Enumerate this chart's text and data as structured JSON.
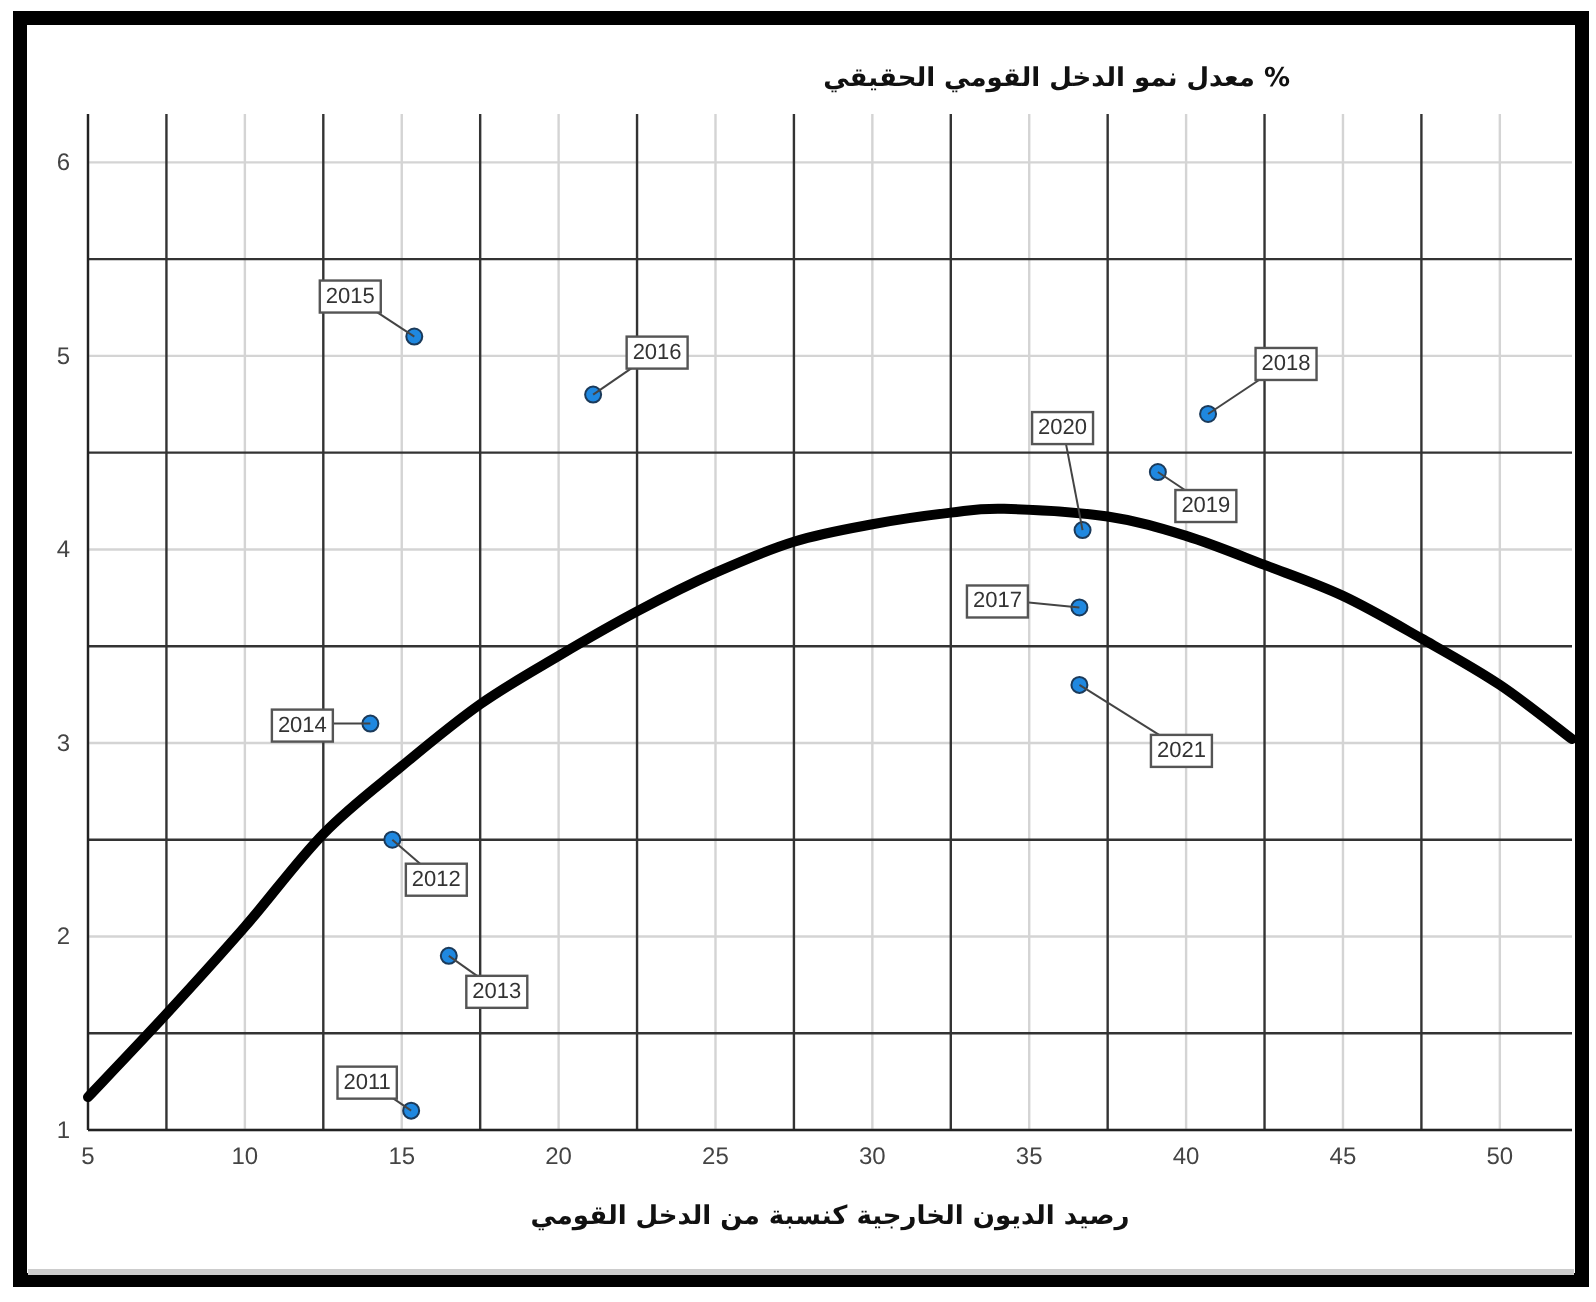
{
  "chart_data": {
    "type": "scatter",
    "ylabel": "معدل نمو الدخل القومي الحقيقي %",
    "xlabel": "رصيد الديون الخارجية كنسبة من الدخل القومي",
    "xlim": [
      5,
      52.3
    ],
    "ylim": [
      1,
      6.25
    ],
    "xticks": [
      5,
      {
        "value": 7.5,
        "label": null
      },
      10,
      {
        "value": 12.5,
        "label": null
      },
      15,
      {
        "value": 17.5,
        "label": null
      },
      20,
      {
        "value": 22.5,
        "label": null
      },
      25,
      {
        "value": 27.5,
        "label": null
      },
      30,
      {
        "value": 32.5,
        "label": null
      },
      35,
      {
        "value": 37.5,
        "label": null
      },
      40,
      {
        "value": 42.5,
        "label": null
      },
      45,
      {
        "value": 47.5,
        "label": null
      },
      50
    ],
    "yticks": [
      1,
      {
        "value": 1.5,
        "label": null
      },
      2,
      {
        "value": 2.5,
        "label": null
      },
      3,
      {
        "value": 3.5,
        "label": null
      },
      4,
      {
        "value": 4.5,
        "label": null
      },
      5,
      {
        "value": 5.5,
        "label": null
      },
      6
    ],
    "grid": true,
    "marker": "circle",
    "series": [
      {
        "color": "#1f88e0",
        "x": [
          15.3,
          14.7,
          16.5,
          14.0,
          15.4,
          21.1,
          36.6,
          40.7,
          39.1,
          36.7,
          36.6
        ],
        "values": [
          1.1,
          2.5,
          1.9,
          3.1,
          5.1,
          4.8,
          3.7,
          4.7,
          4.4,
          4.1,
          3.3
        ]
      },
      {
        "type": "line",
        "color": "#000000",
        "marker": "none",
        "x": [
          5,
          7.5,
          10,
          12.5,
          15,
          17.5,
          20,
          22.5,
          25,
          27.5,
          30,
          32.5,
          34.2,
          37.5,
          40,
          42.5,
          45,
          47.5,
          50,
          52.3
        ],
        "values": [
          1.17,
          1.6,
          2.05,
          2.53,
          2.88,
          3.2,
          3.45,
          3.68,
          3.88,
          4.04,
          4.13,
          4.19,
          4.21,
          4.17,
          4.07,
          3.92,
          3.76,
          3.54,
          3.3,
          3.02
        ]
      }
    ],
    "annotations": [
      {
        "text": "2011",
        "x": 15.3,
        "y": 1.1
      },
      {
        "text": "2012",
        "x": 14.7,
        "y": 2.5
      },
      {
        "text": "2013",
        "x": 16.5,
        "y": 1.9
      },
      {
        "text": "2014",
        "x": 14.0,
        "y": 3.1
      },
      {
        "text": "2015",
        "x": 15.4,
        "y": 5.1
      },
      {
        "text": "2016",
        "x": 21.1,
        "y": 4.8
      },
      {
        "text": "2017",
        "x": 36.6,
        "y": 3.7
      },
      {
        "text": "2018",
        "x": 40.7,
        "y": 4.7
      },
      {
        "text": "2019",
        "x": 39.1,
        "y": 4.4
      },
      {
        "text": "2020",
        "x": 36.7,
        "y": 4.1
      },
      {
        "text": "2021",
        "x": 36.6,
        "y": 3.3
      }
    ]
  }
}
